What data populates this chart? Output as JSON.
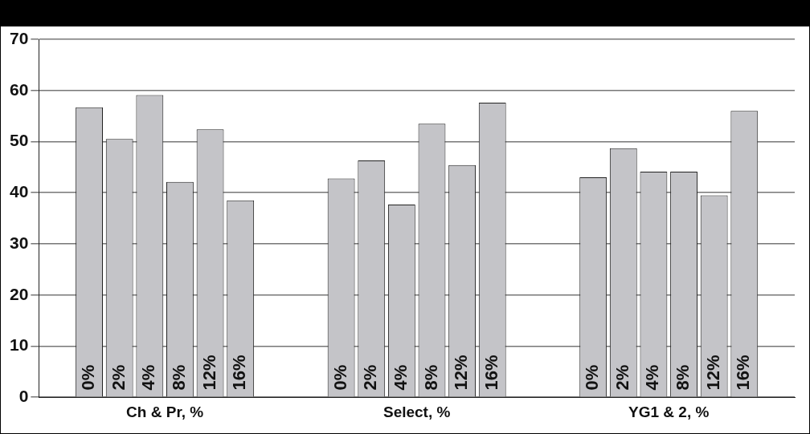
{
  "chart_data": {
    "type": "bar",
    "categories": [
      "Ch & Pr, %",
      "Select, %",
      "YG1 & 2, %"
    ],
    "series": [
      {
        "name": "0%",
        "color": "#c4c4c8",
        "values": [
          56.7,
          42.8,
          43.0
        ]
      },
      {
        "name": "2%",
        "color": "#c4c4c8",
        "values": [
          50.5,
          46.3,
          48.7
        ]
      },
      {
        "name": "4%",
        "color": "#c4c4c8",
        "values": [
          59.1,
          37.7,
          44.1
        ]
      },
      {
        "name": "8%",
        "color": "#c4c4c8",
        "values": [
          42.1,
          53.5,
          44.1
        ]
      },
      {
        "name": "12%",
        "color": "#c4c4c8",
        "values": [
          52.4,
          45.4,
          39.5
        ]
      },
      {
        "name": "16%",
        "color": "#c4c4c8",
        "values": [
          38.5,
          57.6,
          56.0
        ]
      }
    ],
    "ylim": [
      0,
      70
    ],
    "yticks": [
      0,
      10,
      20,
      30,
      40,
      50,
      60,
      70
    ],
    "grid": "y",
    "legend": false
  }
}
